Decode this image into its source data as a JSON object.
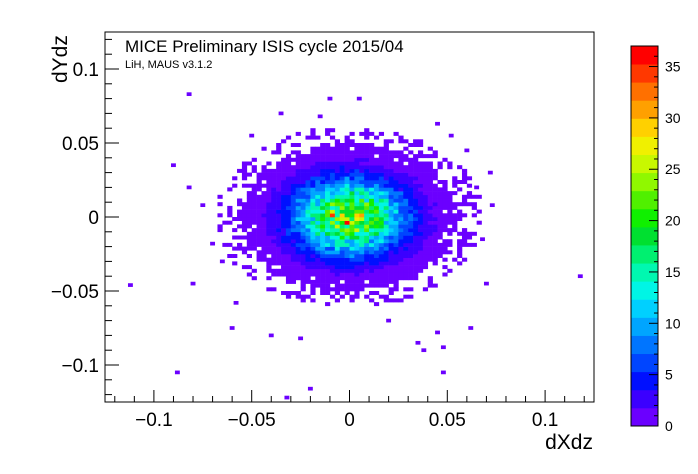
{
  "annotation": {
    "title": "MICE Preliminary ISIS cycle 2015/04",
    "subtitle": "LiH, MAUS v3.1.2"
  },
  "chart_data": {
    "type": "heatmap",
    "xlabel": "dXdz",
    "ylabel": "dYdz",
    "xlim": [
      -0.125,
      0.125
    ],
    "ylim": [
      -0.125,
      0.125
    ],
    "x_ticks": [
      -0.1,
      -0.05,
      0,
      0.05,
      0.1
    ],
    "x_tick_labels": [
      "−0.1",
      "−0.05",
      "0",
      "0.05",
      "0.1"
    ],
    "y_ticks": [
      -0.1,
      -0.05,
      0,
      0.05,
      0.1
    ],
    "y_tick_labels": [
      "−0.1",
      "−0.05",
      "0",
      "0.05",
      "0.1"
    ],
    "zlim": [
      0,
      37
    ],
    "z_ticks": [
      0,
      5,
      10,
      15,
      20,
      25,
      30,
      35
    ],
    "z_tick_labels": [
      "0",
      "5",
      "10",
      "15",
      "20",
      "25",
      "30",
      "35"
    ],
    "bin_width": 0.0025,
    "distribution": {
      "x_mean": 0.0,
      "y_mean": 0.0,
      "x_sigma": 0.019,
      "y_sigma": 0.017,
      "peak_count": 37
    },
    "outlier_points": [
      {
        "x": -0.082,
        "y": 0.083
      },
      {
        "x": -0.09,
        "y": 0.035
      },
      {
        "x": -0.082,
        "y": 0.02
      },
      {
        "x": -0.075,
        "y": 0.008
      },
      {
        "x": -0.112,
        "y": -0.046
      },
      {
        "x": -0.08,
        "y": -0.045
      },
      {
        "x": -0.06,
        "y": -0.075
      },
      {
        "x": -0.088,
        "y": -0.105
      },
      {
        "x": -0.032,
        "y": -0.122
      },
      {
        "x": -0.02,
        "y": -0.116
      },
      {
        "x": -0.04,
        "y": -0.08
      },
      {
        "x": -0.025,
        "y": -0.082
      },
      {
        "x": 0.035,
        "y": -0.085
      },
      {
        "x": 0.045,
        "y": -0.078
      },
      {
        "x": 0.038,
        "y": -0.09
      },
      {
        "x": 0.048,
        "y": -0.088
      },
      {
        "x": 0.062,
        "y": -0.075
      },
      {
        "x": 0.048,
        "y": -0.105
      },
      {
        "x": 0.118,
        "y": -0.04
      },
      {
        "x": -0.01,
        "y": 0.08
      },
      {
        "x": 0.005,
        "y": 0.08
      },
      {
        "x": 0.045,
        "y": 0.063
      },
      {
        "x": -0.035,
        "y": 0.07
      },
      {
        "x": -0.015,
        "y": 0.068
      },
      {
        "x": 0.052,
        "y": 0.055
      },
      {
        "x": 0.06,
        "y": 0.045
      },
      {
        "x": 0.072,
        "y": 0.03
      },
      {
        "x": 0.073,
        "y": 0.008
      },
      {
        "x": 0.065,
        "y": 0.02
      },
      {
        "x": -0.065,
        "y": -0.03
      },
      {
        "x": -0.058,
        "y": -0.058
      },
      {
        "x": 0.02,
        "y": -0.07
      },
      {
        "x": 0.07,
        "y": -0.045
      },
      {
        "x": -0.07,
        "y": -0.018
      },
      {
        "x": 0.068,
        "y": -0.015
      },
      {
        "x": -0.05,
        "y": 0.055
      }
    ],
    "hot_bins": [
      {
        "x": -0.01,
        "y": 0.002,
        "count": 35
      },
      {
        "x": -0.0025,
        "y": -0.003,
        "count": 37
      },
      {
        "x": 0.005,
        "y": 0.002,
        "count": 30
      }
    ],
    "palette": [
      "#6b00ff",
      "#3b00ff",
      "#0010ff",
      "#0045ff",
      "#0075ff",
      "#00a5ff",
      "#00d0ff",
      "#00f5e5",
      "#00f8b0",
      "#00f070",
      "#00e030",
      "#10f000",
      "#50f000",
      "#90f800",
      "#c8f800",
      "#f0f000",
      "#ffd000",
      "#ffa000",
      "#ff7000",
      "#ff3800",
      "#ff0000"
    ],
    "frame_color": "#000000",
    "background_color": "#ffffff"
  }
}
